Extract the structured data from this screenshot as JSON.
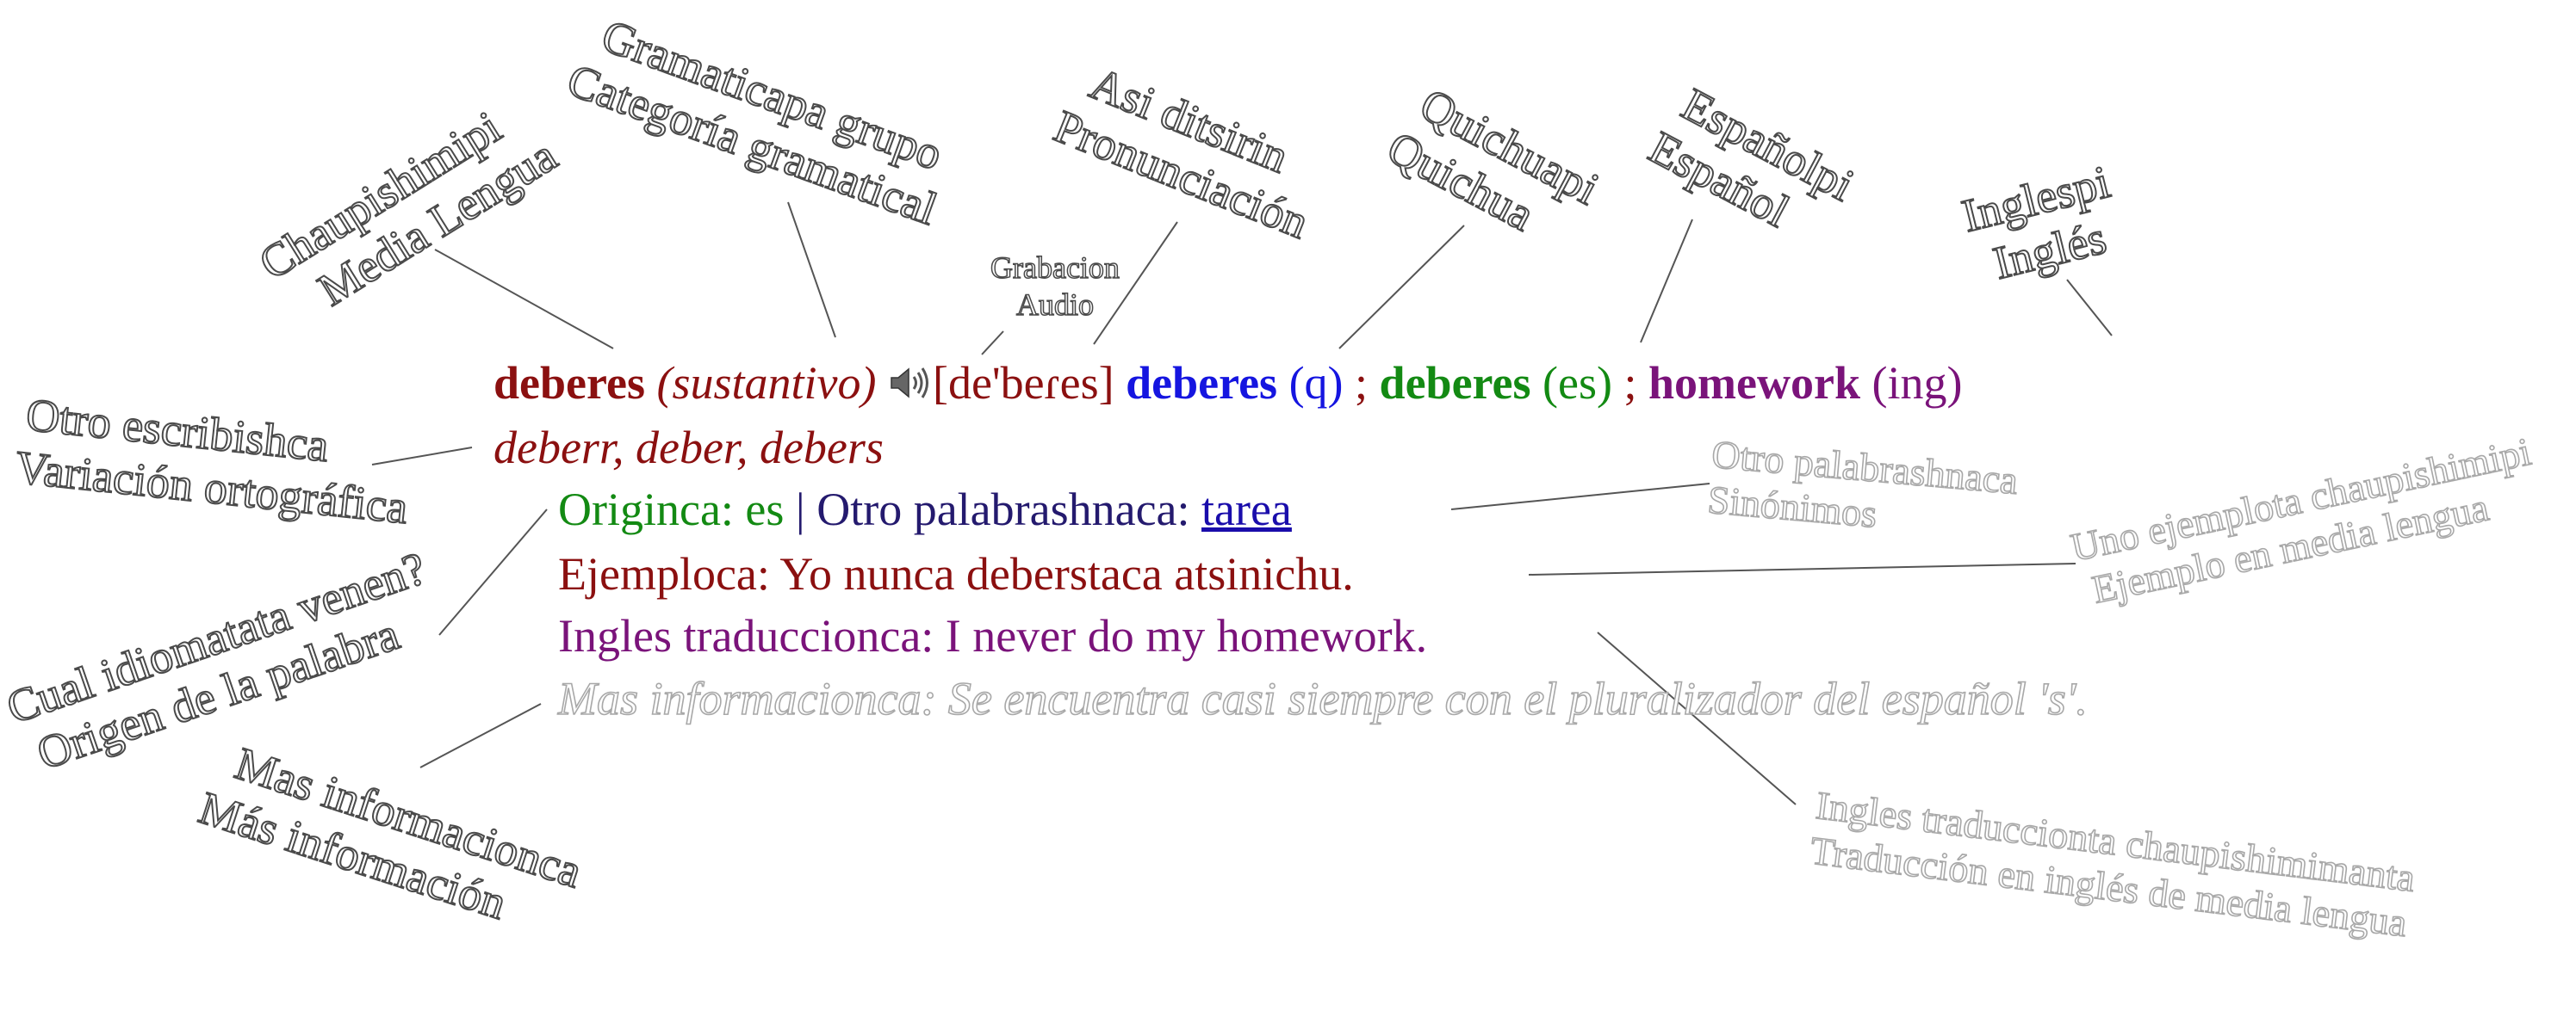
{
  "colors": {
    "headword": "#8b1010",
    "quichua": "#1515e0",
    "espanol": "#138a13",
    "ingles": "#7a137a",
    "navy": "#241a6e",
    "link": "#1a0dab",
    "callout": "#4a4a4a",
    "callout_light": "#a8a8a8"
  },
  "entry": {
    "headword": "deberes",
    "pos": "(sustantivo)",
    "speaker_icon": "speaker-icon",
    "pronunciation": "[de'beɾes]",
    "quichua_word": "deberes",
    "quichua_tag": "(q)",
    "sep1": ";",
    "espanol_word": "deberes",
    "espanol_tag": "(es)",
    "sep2": ";",
    "ingles_word": "homework",
    "ingles_tag": "(ing)",
    "variants": "deberr, deber, debers",
    "origin_label": "Originca: es",
    "pipe": "|",
    "synonyms_label": "Otro palabrashnaca:",
    "synonym_link": "tarea",
    "example": "Ejemploca: Yo nunca deberstaca atsinichu.",
    "translation": "Ingles traduccionca: I never do my homework.",
    "more_info": "Mas informacionca: Se encuentra casi siempre con el pluralizador del español 's'."
  },
  "callouts": {
    "media_lengua": [
      "Chaupishimipi",
      "Media Lengua"
    ],
    "categoria": [
      "Gramaticapa grupo",
      "Categoría gramatical"
    ],
    "audio": [
      "Grabacion",
      "Audio"
    ],
    "pronunciacion": [
      "Asi ditsirin",
      "Pronunciación"
    ],
    "quichua": [
      "Quichuapi",
      "Quichua"
    ],
    "espanol": [
      "Españolpi",
      "Español"
    ],
    "ingles": [
      "Inglespi",
      "Inglés"
    ],
    "variacion": [
      "Otro escribishca",
      "Variación ortográfica"
    ],
    "sinonimos": [
      "Otro palabrashnaca",
      "Sinónimos"
    ],
    "ejemplo": [
      "Uno ejemplota chaupishimipi",
      "Ejemplo en media lengua"
    ],
    "origen": [
      "Cual idiomatata venen?",
      "Origen de la palabra"
    ],
    "mas_info": [
      "Mas informacionca",
      "Más información"
    ],
    "traduccion": [
      "Ingles traduccionta chaupishimimanta",
      "Traducción en inglés de media lengua"
    ]
  }
}
